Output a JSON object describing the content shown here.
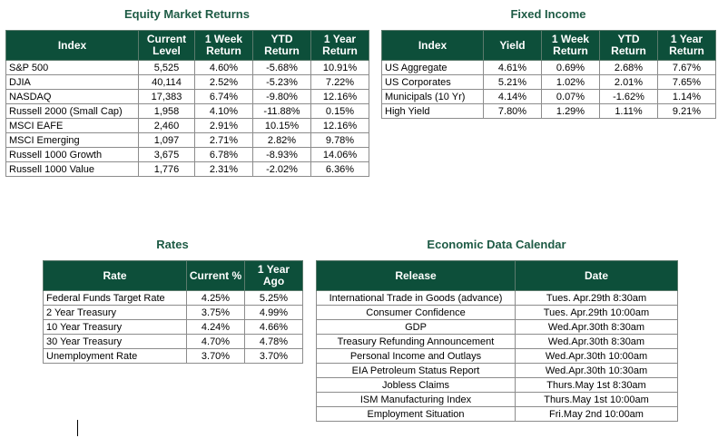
{
  "equity": {
    "title": "Equity Market Returns",
    "headers": [
      "Index",
      "Current Level",
      "1 Week Return",
      "YTD Return",
      "1 Year Return"
    ],
    "rows": [
      [
        "S&P 500",
        "5,525",
        "4.60%",
        "-5.68%",
        "10.91%"
      ],
      [
        "DJIA",
        "40,114",
        "2.52%",
        "-5.23%",
        "7.22%"
      ],
      [
        "NASDAQ",
        "17,383",
        "6.74%",
        "-9.80%",
        "12.16%"
      ],
      [
        "Russell 2000 (Small Cap)",
        "1,958",
        "4.10%",
        "-11.88%",
        "0.15%"
      ],
      [
        "MSCI EAFE",
        "2,460",
        "2.91%",
        "10.15%",
        "12.16%"
      ],
      [
        "MSCI Emerging",
        "1,097",
        "2.71%",
        "2.82%",
        "9.78%"
      ],
      [
        "Russell 1000 Growth",
        "3,675",
        "6.78%",
        "-8.93%",
        "14.06%"
      ],
      [
        "Russell 1000 Value",
        "1,776",
        "2.31%",
        "-2.02%",
        "6.36%"
      ]
    ]
  },
  "fixed_income": {
    "title": "Fixed Income",
    "headers": [
      "Index",
      "Yield",
      "1 Week Return",
      "YTD Return",
      "1 Year Return"
    ],
    "rows": [
      [
        "US Aggregate",
        "4.61%",
        "0.69%",
        "2.68%",
        "7.67%"
      ],
      [
        "US Corporates",
        "5.21%",
        "1.02%",
        "2.01%",
        "7.65%"
      ],
      [
        "Municipals (10 Yr)",
        "4.14%",
        "0.07%",
        "-1.62%",
        "1.14%"
      ],
      [
        "High Yield",
        "7.80%",
        "1.29%",
        "1.11%",
        "9.21%"
      ]
    ]
  },
  "rates": {
    "title": "Rates",
    "headers": [
      "Rate",
      "Current %",
      "1 Year Ago"
    ],
    "rows": [
      [
        "Federal Funds Target Rate",
        "4.25%",
        "5.25%"
      ],
      [
        "2 Year Treasury",
        "3.75%",
        "4.99%"
      ],
      [
        "10 Year Treasury",
        "4.24%",
        "4.66%"
      ],
      [
        "30 Year Treasury",
        "4.70%",
        "4.78%"
      ],
      [
        "Unemployment Rate",
        "3.70%",
        "3.70%"
      ]
    ]
  },
  "calendar": {
    "title": "Economic Data Calendar",
    "headers": [
      "Release",
      "Date"
    ],
    "rows": [
      [
        "International Trade in Goods (advance)",
        "Tues. Apr.29th 8:30am"
      ],
      [
        "Consumer Confidence",
        "Tues. Apr.29th 10:00am"
      ],
      [
        "GDP",
        "Wed.Apr.30th 8:30am"
      ],
      [
        "Treasury Refunding Announcement",
        "Wed.Apr.30th 8:30am"
      ],
      [
        "Personal Income and Outlays",
        "Wed.Apr.30th 10:00am"
      ],
      [
        "EIA Petroleum Status Report",
        "Wed.Apr.30th 10:30am"
      ],
      [
        "Jobless Claims",
        "Thurs.May 1st 8:30am"
      ],
      [
        "ISM Manufacturing Index",
        "Thurs.May 1st 10:00am"
      ],
      [
        "Employment Situation",
        "Fri.May 2nd 10:00am"
      ]
    ]
  },
  "colors": {
    "header_bg": "#0d4f3a",
    "title_text": "#1e5b45"
  }
}
